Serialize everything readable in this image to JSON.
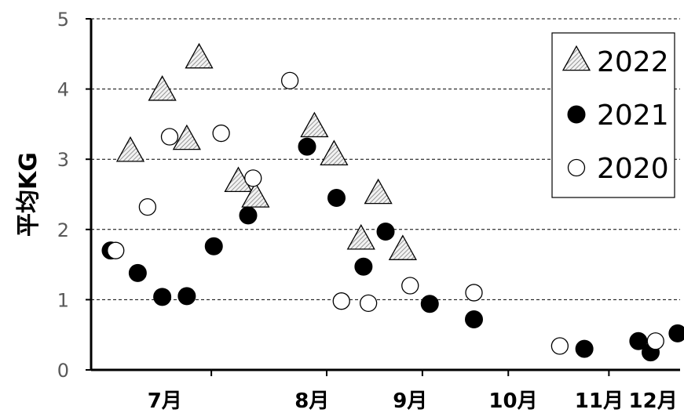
{
  "chart_data": {
    "type": "scatter",
    "ylabel": "平均KG",
    "ylim": [
      0,
      5
    ],
    "y_ticks": [
      "0",
      "1",
      "2",
      "3",
      "4",
      "5"
    ],
    "x_domain": [
      0,
      12
    ],
    "x_ticks": [
      {
        "label": "7月",
        "x": 1.5
      },
      {
        "label": "8月",
        "x": 4.5
      },
      {
        "label": "9月",
        "x": 6.5
      },
      {
        "label": "10月",
        "x": 8.6
      },
      {
        "label": "11月",
        "x": 10.35
      },
      {
        "label": "12月",
        "x": 11.45
      }
    ],
    "x_dividers": [
      2.45,
      4.8,
      6.75,
      8.5,
      10.55
    ],
    "grid": "dashed horizontal",
    "legend_position": "top-right",
    "series": [
      {
        "name": "2022",
        "marker": "hatched-triangle",
        "points": [
          [
            0.8,
            3.1
          ],
          [
            1.45,
            3.97
          ],
          [
            1.95,
            3.27
          ],
          [
            2.2,
            4.43
          ],
          [
            3.0,
            2.67
          ],
          [
            3.35,
            2.45
          ],
          [
            4.55,
            3.45
          ],
          [
            4.95,
            3.05
          ],
          [
            5.5,
            1.85
          ],
          [
            5.85,
            2.5
          ],
          [
            6.35,
            1.7
          ]
        ]
      },
      {
        "name": "2021",
        "marker": "filled-circle",
        "points": [
          [
            0.4,
            1.7
          ],
          [
            0.95,
            1.38
          ],
          [
            1.45,
            1.04
          ],
          [
            1.95,
            1.05
          ],
          [
            2.5,
            1.76
          ],
          [
            3.2,
            2.2
          ],
          [
            4.4,
            3.18
          ],
          [
            5.0,
            2.45
          ],
          [
            5.55,
            1.47
          ],
          [
            6.0,
            1.97
          ],
          [
            6.9,
            0.94
          ],
          [
            7.8,
            0.72
          ],
          [
            10.05,
            0.3
          ],
          [
            11.15,
            0.41
          ],
          [
            11.4,
            0.25
          ],
          [
            11.95,
            0.52
          ]
        ]
      },
      {
        "name": "2020",
        "marker": "open-circle",
        "points": [
          [
            0.5,
            1.7
          ],
          [
            1.15,
            2.32
          ],
          [
            1.6,
            3.32
          ],
          [
            2.65,
            3.37
          ],
          [
            3.3,
            2.73
          ],
          [
            4.05,
            4.12
          ],
          [
            5.1,
            0.98
          ],
          [
            5.65,
            0.95
          ],
          [
            6.5,
            1.2
          ],
          [
            7.8,
            1.1
          ],
          [
            9.55,
            0.34
          ],
          [
            11.5,
            0.41
          ]
        ]
      }
    ]
  },
  "colors": {
    "axis": "#000000",
    "grid": "#000000",
    "tick_text": "#595959",
    "hatch": "#7f7f7f",
    "triangle_fill": "#f2f2f2",
    "marker_stroke": "#000000"
  }
}
